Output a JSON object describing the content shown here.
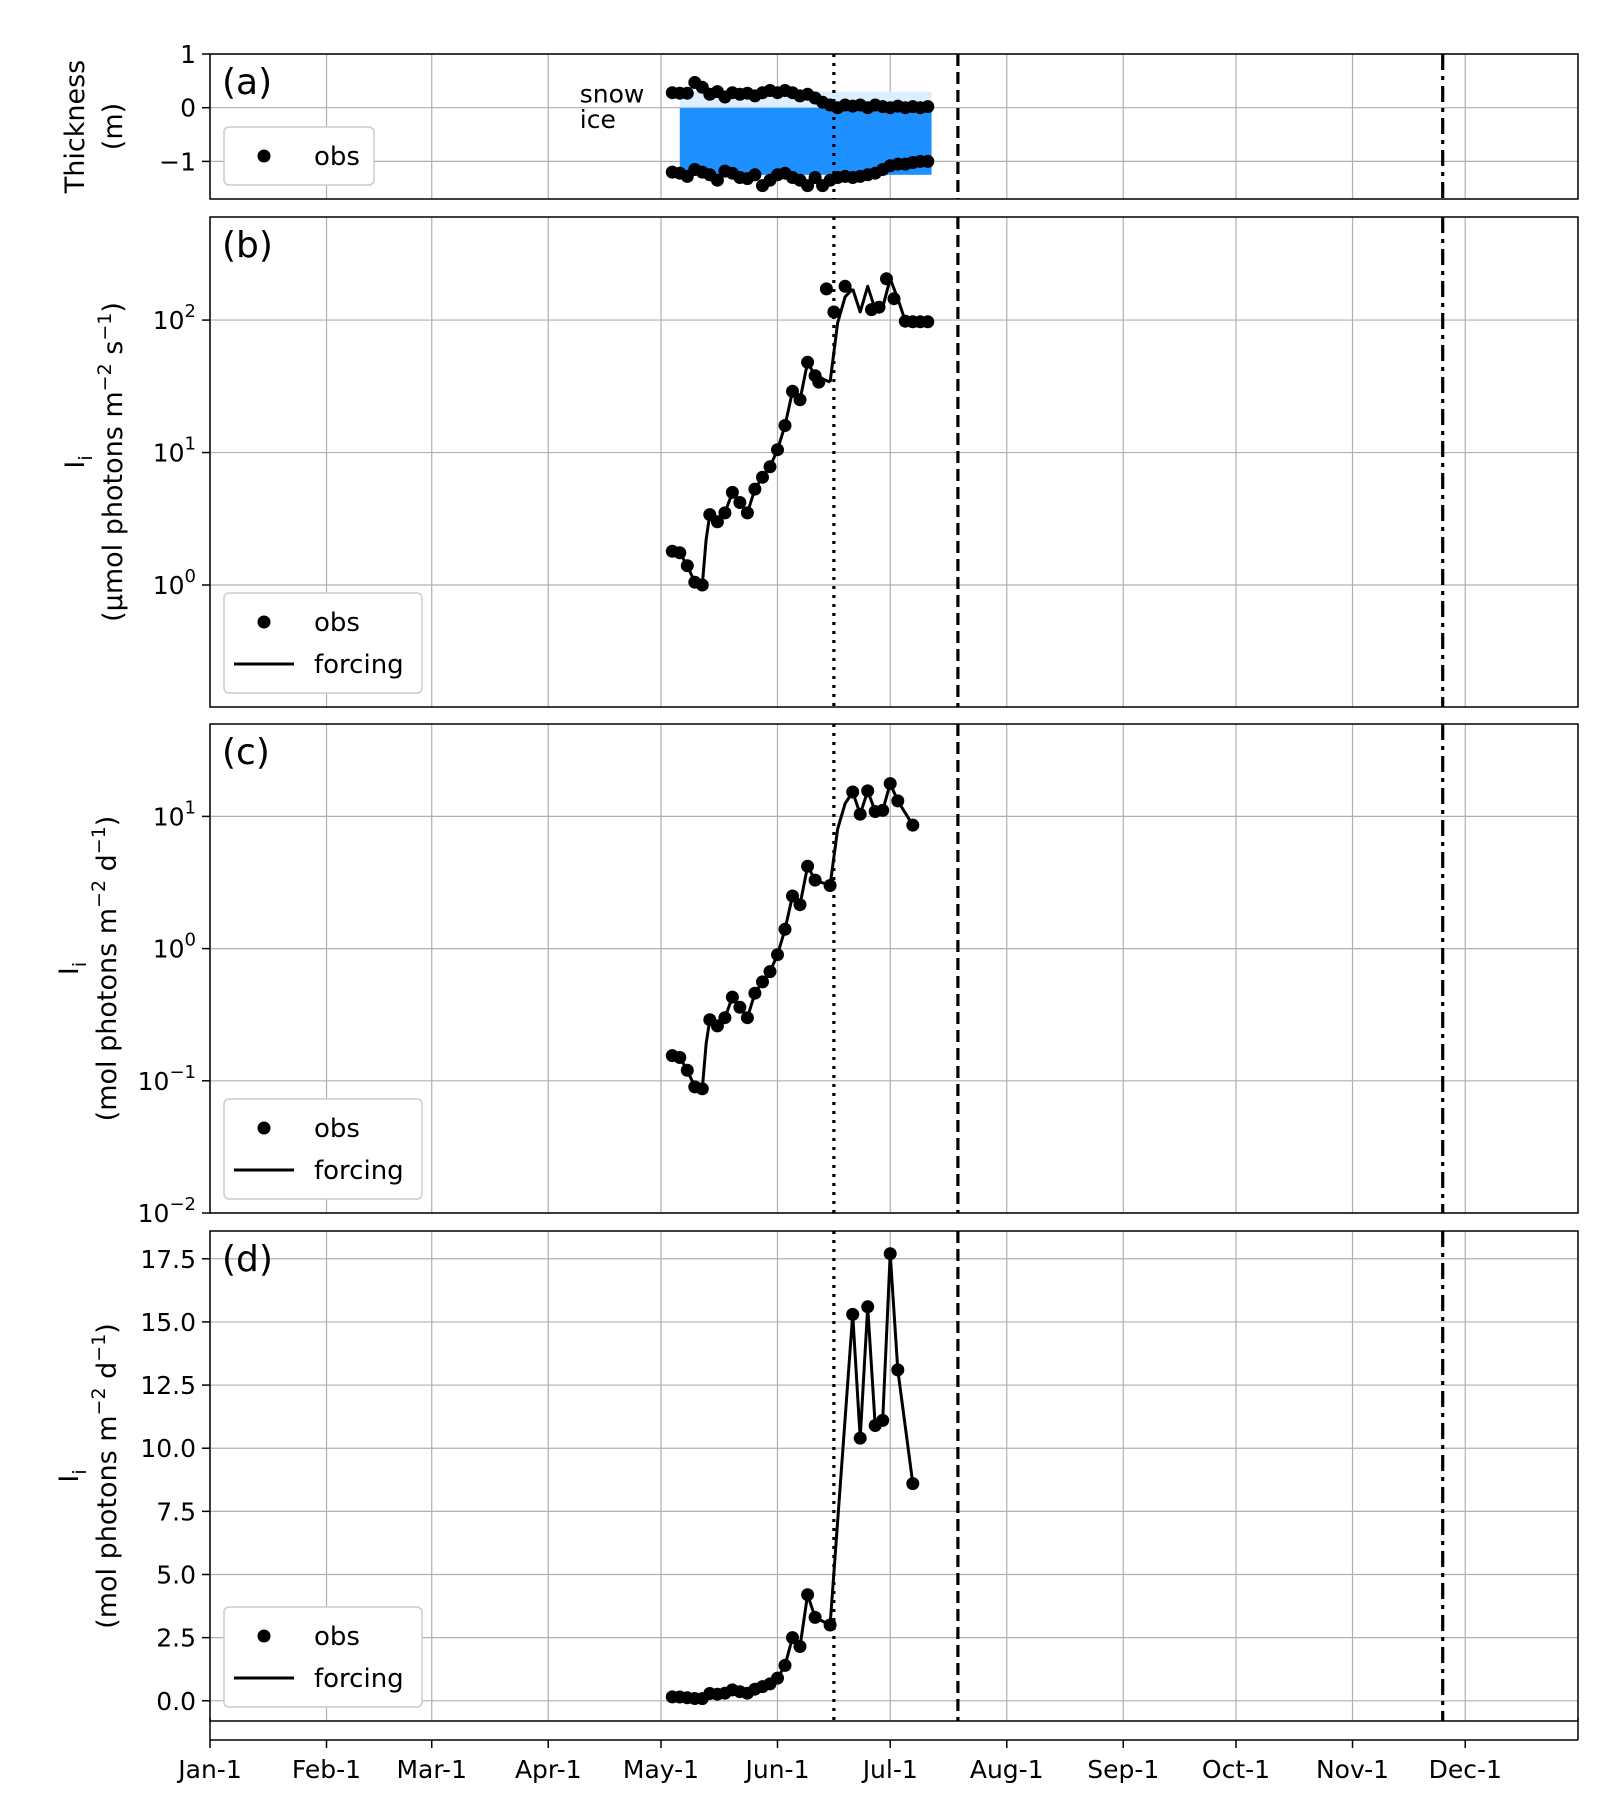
{
  "chart_data": [
    {
      "id": "a",
      "type": "line",
      "panel_label": "(a)",
      "ylabel_lines": [
        "Thickness",
        "(m)"
      ],
      "yscale": "linear",
      "ylim": [
        -1.7,
        1.0
      ],
      "yticks": [
        {
          "value": 1,
          "label": "1"
        },
        {
          "value": 0,
          "label": "0"
        },
        {
          "value": -1,
          "label": "−1"
        }
      ],
      "annotations": [
        "snow",
        "ice"
      ],
      "legend": {
        "placement": "lower-left",
        "entries": [
          {
            "label": "obs",
            "style": "marker"
          }
        ]
      },
      "ice_fill_color": "#1e90ff",
      "snow_fill_color": "#ddeeff",
      "fill_range": [
        126,
        193
      ],
      "snow_obs": {
        "x": [
          124,
          126,
          128,
          130,
          132,
          134,
          136,
          138,
          140,
          142,
          144,
          146,
          148,
          150,
          152,
          154,
          156,
          158,
          160,
          162,
          164,
          166,
          168,
          170,
          172,
          174,
          176,
          178,
          180,
          182,
          184,
          186,
          188,
          190,
          192
        ],
        "y": [
          0.28,
          0.27,
          0.27,
          0.47,
          0.38,
          0.25,
          0.3,
          0.2,
          0.28,
          0.25,
          0.27,
          0.22,
          0.28,
          0.32,
          0.28,
          0.32,
          0.28,
          0.22,
          0.25,
          0.18,
          0.1,
          0.05,
          0.0,
          0.05,
          0.03,
          0.05,
          0.0,
          0.05,
          0.02,
          0.0,
          0.03,
          0.0,
          0.02,
          0.0,
          0.02
        ]
      },
      "ice_obs": {
        "x": [
          124,
          126,
          128,
          130,
          132,
          134,
          136,
          138,
          140,
          142,
          144,
          146,
          148,
          150,
          152,
          154,
          156,
          158,
          160,
          162,
          164,
          166,
          168,
          170,
          172,
          174,
          176,
          178,
          180,
          182,
          184,
          186,
          188,
          190,
          192
        ],
        "y": [
          -1.2,
          -1.22,
          -1.28,
          -1.15,
          -1.2,
          -1.25,
          -1.35,
          -1.18,
          -1.22,
          -1.3,
          -1.32,
          -1.25,
          -1.45,
          -1.35,
          -1.25,
          -1.22,
          -1.3,
          -1.35,
          -1.45,
          -1.3,
          -1.45,
          -1.35,
          -1.3,
          -1.28,
          -1.3,
          -1.28,
          -1.25,
          -1.22,
          -1.15,
          -1.08,
          -1.05,
          -1.05,
          -1.02,
          -1.0,
          -1.0
        ]
      }
    },
    {
      "id": "b",
      "type": "line",
      "panel_label": "(b)",
      "ylabel_lines": [
        "I<sub>i</sub>",
        "(μmol photons m<sup>−2</sup> s<sup>−1</sup>)"
      ],
      "yscale": "log",
      "ylim": [
        0.12,
        600
      ],
      "yticks": [
        {
          "value": 1,
          "base": "10",
          "exp": "0"
        },
        {
          "value": 10,
          "base": "10",
          "exp": "1"
        },
        {
          "value": 100,
          "base": "10",
          "exp": "2"
        }
      ],
      "legend": {
        "placement": "lower-left",
        "entries": [
          {
            "label": "obs",
            "style": "marker"
          },
          {
            "label": "forcing",
            "style": "line"
          }
        ]
      },
      "obs": {
        "x": [
          124,
          126,
          128,
          130,
          132,
          134,
          136,
          138,
          140,
          142,
          144,
          146,
          148,
          150,
          152,
          154,
          156,
          158,
          160,
          162,
          163,
          165,
          167,
          170,
          177,
          179,
          181,
          183,
          186,
          188,
          190,
          192
        ],
        "y": [
          1.8,
          1.75,
          1.4,
          1.05,
          1.0,
          3.4,
          3.0,
          3.5,
          5.0,
          4.2,
          3.5,
          5.3,
          6.5,
          7.8,
          10.5,
          16.0,
          29.0,
          25.0,
          48.0,
          38.0,
          34.0,
          172,
          115,
          180,
          120,
          125,
          205,
          145,
          98,
          97,
          97,
          97
        ]
      },
      "forcing_segments": [
        {
          "x": [
            124,
            126,
            128,
            130,
            132
          ],
          "y": [
            1.8,
            1.75,
            1.4,
            1.05,
            1.0
          ]
        },
        {
          "x": [
            132,
            133,
            134,
            135,
            136,
            138,
            140,
            142,
            144,
            146,
            148,
            150,
            152,
            154,
            156,
            158,
            160
          ],
          "y": [
            1.0,
            2.2,
            3.4,
            3.2,
            3.0,
            3.5,
            5.0,
            4.2,
            3.5,
            5.3,
            6.5,
            7.8,
            10.5,
            16.0,
            29.0,
            25.0,
            48.0
          ]
        },
        {
          "x": [
            160,
            162,
            166
          ],
          "y": [
            48.0,
            38.0,
            34.0
          ]
        },
        {
          "x": [
            166,
            168,
            170,
            172
          ],
          "y": [
            34.0,
            95.0,
            150.0,
            172.0
          ]
        },
        {
          "x": [
            172,
            174,
            176,
            178,
            180,
            182,
            184,
            186,
            188
          ],
          "y": [
            172,
            115,
            180,
            120,
            125,
            205,
            145,
            98,
            97
          ]
        }
      ]
    },
    {
      "id": "c",
      "type": "line",
      "panel_label": "(c)",
      "ylabel_lines": [
        "I<sub>i</sub>",
        "(mol photons m<sup>−2</sup> d<sup>−1</sup>)"
      ],
      "yscale": "log",
      "ylim": [
        0.01,
        50
      ],
      "yticks": [
        {
          "value": 0.01,
          "base": "10",
          "exp": "−2"
        },
        {
          "value": 0.1,
          "base": "10",
          "exp": "−1"
        },
        {
          "value": 1,
          "base": "10",
          "exp": "0"
        },
        {
          "value": 10,
          "base": "10",
          "exp": "1"
        }
      ],
      "legend": {
        "placement": "lower-left",
        "entries": [
          {
            "label": "obs",
            "style": "marker"
          },
          {
            "label": "forcing",
            "style": "line"
          }
        ]
      },
      "obs": {
        "x": [
          124,
          126,
          128,
          130,
          132,
          134,
          136,
          138,
          140,
          142,
          144,
          146,
          148,
          150,
          152,
          154,
          156,
          158,
          160,
          162,
          166,
          172,
          174,
          176,
          178,
          180,
          182,
          184,
          188
        ],
        "y": [
          0.155,
          0.15,
          0.12,
          0.09,
          0.087,
          0.29,
          0.26,
          0.3,
          0.43,
          0.36,
          0.3,
          0.46,
          0.56,
          0.67,
          0.9,
          1.4,
          2.5,
          2.15,
          4.2,
          3.3,
          3.0,
          15.3,
          10.4,
          15.6,
          10.9,
          11.1,
          17.7,
          13.1,
          8.6
        ]
      },
      "forcing_segments": [
        {
          "x": [
            124,
            126,
            128,
            130,
            132
          ],
          "y": [
            0.155,
            0.15,
            0.12,
            0.09,
            0.087
          ]
        },
        {
          "x": [
            132,
            133,
            134,
            136,
            138,
            140,
            142,
            144,
            146,
            148,
            150,
            152,
            154,
            156,
            158,
            160,
            162,
            166
          ],
          "y": [
            0.087,
            0.19,
            0.29,
            0.26,
            0.3,
            0.43,
            0.36,
            0.3,
            0.46,
            0.56,
            0.67,
            0.9,
            1.4,
            2.5,
            2.15,
            4.2,
            3.3,
            3.0
          ]
        },
        {
          "x": [
            166,
            168,
            170,
            172
          ],
          "y": [
            3.0,
            8.0,
            12.5,
            15.3
          ]
        },
        {
          "x": [
            172,
            174,
            176,
            178,
            180,
            182,
            184,
            188
          ],
          "y": [
            15.3,
            10.4,
            15.6,
            10.9,
            11.1,
            17.7,
            13.1,
            8.6
          ]
        }
      ]
    },
    {
      "id": "d",
      "type": "line",
      "panel_label": "(d)",
      "ylabel_lines": [
        "I<sub>i</sub>",
        "(mol photons m<sup>−2</sup> d<sup>−1</sup>)"
      ],
      "yscale": "linear",
      "ylim": [
        -0.8,
        18.6
      ],
      "yticks": [
        {
          "value": 0,
          "label": "0.0"
        },
        {
          "value": 2.5,
          "label": "2.5"
        },
        {
          "value": 5,
          "label": "5.0"
        },
        {
          "value": 7.5,
          "label": "7.5"
        },
        {
          "value": 10,
          "label": "10.0"
        },
        {
          "value": 12.5,
          "label": "12.5"
        },
        {
          "value": 15,
          "label": "15.0"
        },
        {
          "value": 17.5,
          "label": "17.5"
        }
      ],
      "legend": {
        "placement": "lower-left",
        "entries": [
          {
            "label": "obs",
            "style": "marker"
          },
          {
            "label": "forcing",
            "style": "line"
          }
        ]
      },
      "obs": {
        "x": [
          124,
          126,
          128,
          130,
          132,
          134,
          136,
          138,
          140,
          142,
          144,
          146,
          148,
          150,
          152,
          154,
          156,
          158,
          160,
          162,
          166,
          172,
          174,
          176,
          178,
          180,
          182,
          184,
          188
        ],
        "y": [
          0.155,
          0.15,
          0.12,
          0.09,
          0.087,
          0.29,
          0.26,
          0.3,
          0.43,
          0.36,
          0.3,
          0.46,
          0.56,
          0.67,
          0.9,
          1.4,
          2.5,
          2.15,
          4.2,
          3.3,
          3.0,
          15.3,
          10.4,
          15.6,
          10.9,
          11.1,
          17.7,
          13.1,
          8.6
        ]
      },
      "forcing_segments": [
        {
          "x": [
            124,
            126,
            128,
            130,
            132,
            134,
            136,
            138,
            140,
            142,
            144,
            146,
            148,
            150,
            152,
            154,
            156,
            158,
            160,
            162,
            166,
            172,
            174,
            176,
            178,
            180,
            182,
            184,
            188
          ],
          "y": [
            0.155,
            0.15,
            0.12,
            0.09,
            0.087,
            0.29,
            0.26,
            0.3,
            0.43,
            0.36,
            0.3,
            0.46,
            0.56,
            0.67,
            0.9,
            1.4,
            2.5,
            2.15,
            4.2,
            3.3,
            3.0,
            15.3,
            10.4,
            15.6,
            10.9,
            11.1,
            17.7,
            13.1,
            8.6
          ]
        }
      ]
    }
  ],
  "x_axis": {
    "xlim": [
      1,
      365
    ],
    "tick_days": [
      1,
      32,
      60,
      91,
      121,
      152,
      182,
      213,
      244,
      274,
      305,
      335
    ],
    "tick_labels": [
      "Jan-1",
      "Feb-1",
      "Mar-1",
      "Apr-1",
      "May-1",
      "Jun-1",
      "Jul-1",
      "Aug-1",
      "Sep-1",
      "Oct-1",
      "Nov-1",
      "Dec-1"
    ]
  },
  "vlines": [
    {
      "day": 167,
      "style": "dotted"
    },
    {
      "day": 200,
      "style": "dashed"
    },
    {
      "day": 329,
      "style": "dashdot"
    }
  ],
  "colors": {
    "line": "#000000",
    "grid": "#b0b0b0",
    "ice": "#1e90ff"
  }
}
